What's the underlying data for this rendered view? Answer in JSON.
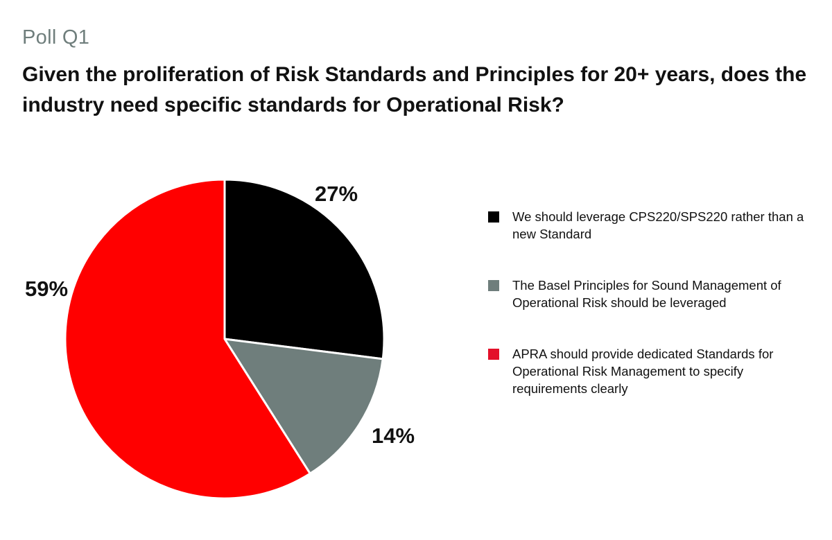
{
  "header": {
    "kicker": "Poll Q1",
    "question": "Given the proliferation of Risk Standards and Principles for 20+ years, does the industry need specific standards for Operational Risk?"
  },
  "chart_data": {
    "type": "pie",
    "title": "Given the proliferation of Risk Standards and Principles for 20+ years, does the industry need specific standards for Operational Risk?",
    "start_angle": "12 o'clock",
    "direction": "clockwise",
    "legend_position": "right",
    "slices": [
      {
        "label": "We should leverage CPS220/SPS220 rather than a new Standard",
        "value": 27,
        "display": "27%",
        "color": "#000000"
      },
      {
        "label": "The Basel Principles for Sound Management of Operational Risk should be leveraged",
        "value": 14,
        "display": "14%",
        "color": "#6f7e7c"
      },
      {
        "label": "APRA should provide dedicated Standards for Operational Risk Management to specify requirements clearly",
        "value": 59,
        "display": "59%",
        "color": "#ff0000"
      }
    ]
  },
  "legend": {
    "swatch_colors": [
      "#000000",
      "#6f7e7c",
      "#e3102a"
    ]
  }
}
